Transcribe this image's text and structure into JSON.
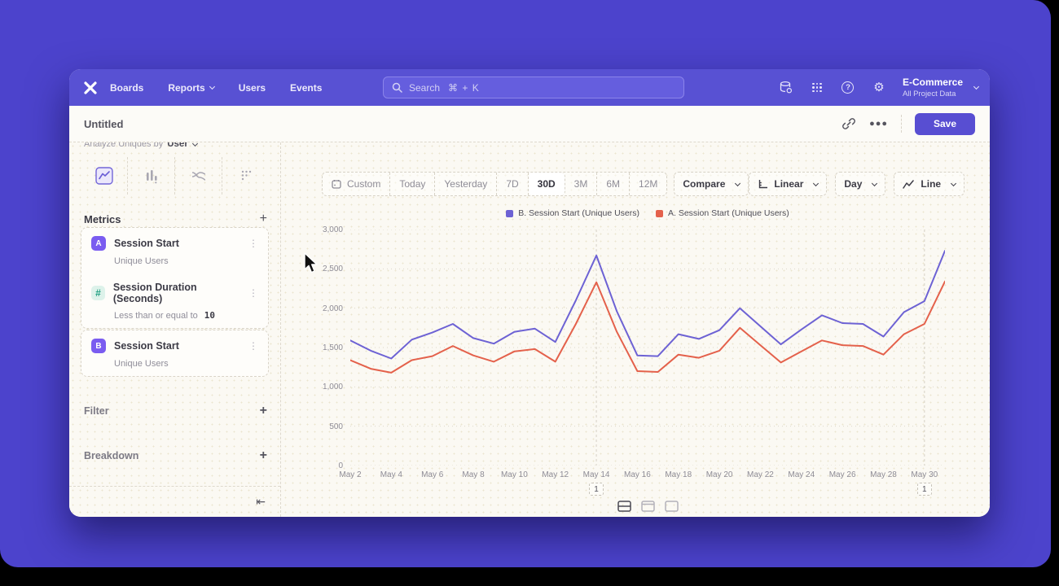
{
  "nav": {
    "links": [
      {
        "label": "Boards",
        "chevron": false
      },
      {
        "label": "Reports",
        "chevron": true
      },
      {
        "label": "Users",
        "chevron": false
      },
      {
        "label": "Events",
        "chevron": false
      }
    ],
    "search_label": "Search",
    "search_shortcut": "⌘ + K",
    "project": {
      "name": "E-Commerce",
      "subtitle": "All Project Data"
    }
  },
  "header": {
    "title": "Untitled",
    "save_label": "Save"
  },
  "sidebar": {
    "analyze_prefix": "Analyze Uniques by",
    "analyze_value": "User",
    "metrics_title": "Metrics",
    "metrics": [
      {
        "badge": "A",
        "badge_color": "#7a5cf0",
        "title": "Session Start",
        "subtitle": "Unique Users",
        "group": 1
      },
      {
        "badge": "#",
        "badge_color": "hash",
        "title": "Session Duration (Seconds)",
        "subtitle": "Less than or equal to",
        "subtitle_value": "10",
        "group": 1
      },
      {
        "badge": "B",
        "badge_color": "#7a5cf0",
        "title": "Session Start",
        "subtitle": "Unique Users",
        "group": 2
      }
    ],
    "sections": [
      "Filter",
      "Breakdown"
    ]
  },
  "toolbar": {
    "ranges": [
      "Custom",
      "Today",
      "Yesterday",
      "7D",
      "30D",
      "3M",
      "6M",
      "12M"
    ],
    "selected_range": "30D",
    "compare_label": "Compare",
    "scale_label": "Linear",
    "interval_label": "Day",
    "chart_type_label": "Line"
  },
  "chart_data": {
    "type": "line",
    "x": [
      "May 2",
      "May 3",
      "May 4",
      "May 5",
      "May 6",
      "May 7",
      "May 8",
      "May 9",
      "May 10",
      "May 11",
      "May 12",
      "May 13",
      "May 14",
      "May 15",
      "May 16",
      "May 17",
      "May 18",
      "May 19",
      "May 20",
      "May 21",
      "May 22",
      "May 23",
      "May 24",
      "May 25",
      "May 26",
      "May 27",
      "May 28",
      "May 29",
      "May 30",
      "May 31"
    ],
    "series": [
      {
        "name": "B. Session Start (Unique Users)",
        "color": "#6d62d4",
        "values": [
          1590,
          1460,
          1360,
          1600,
          1690,
          1800,
          1620,
          1550,
          1700,
          1740,
          1570,
          2100,
          2670,
          1960,
          1400,
          1390,
          1670,
          1610,
          1720,
          2000,
          1770,
          1540,
          1730,
          1910,
          1810,
          1800,
          1640,
          1950,
          2090,
          2730
        ]
      },
      {
        "name": "A. Session Start (Unique Users)",
        "color": "#e4614b",
        "values": [
          1340,
          1230,
          1180,
          1340,
          1390,
          1520,
          1400,
          1320,
          1450,
          1480,
          1320,
          1800,
          2330,
          1700,
          1200,
          1190,
          1410,
          1370,
          1460,
          1750,
          1530,
          1310,
          1450,
          1590,
          1530,
          1520,
          1410,
          1670,
          1800,
          2340
        ]
      }
    ],
    "ylim": [
      0,
      3000
    ],
    "yticks": [
      0,
      500,
      1000,
      1500,
      2000,
      2500,
      3000
    ],
    "xtick_every": 2,
    "grid": "dotted-horizontal",
    "legend_position": "top-center",
    "annotations": [
      {
        "x": "May 14",
        "label": "1"
      },
      {
        "x": "May 30",
        "label": "1"
      }
    ]
  }
}
